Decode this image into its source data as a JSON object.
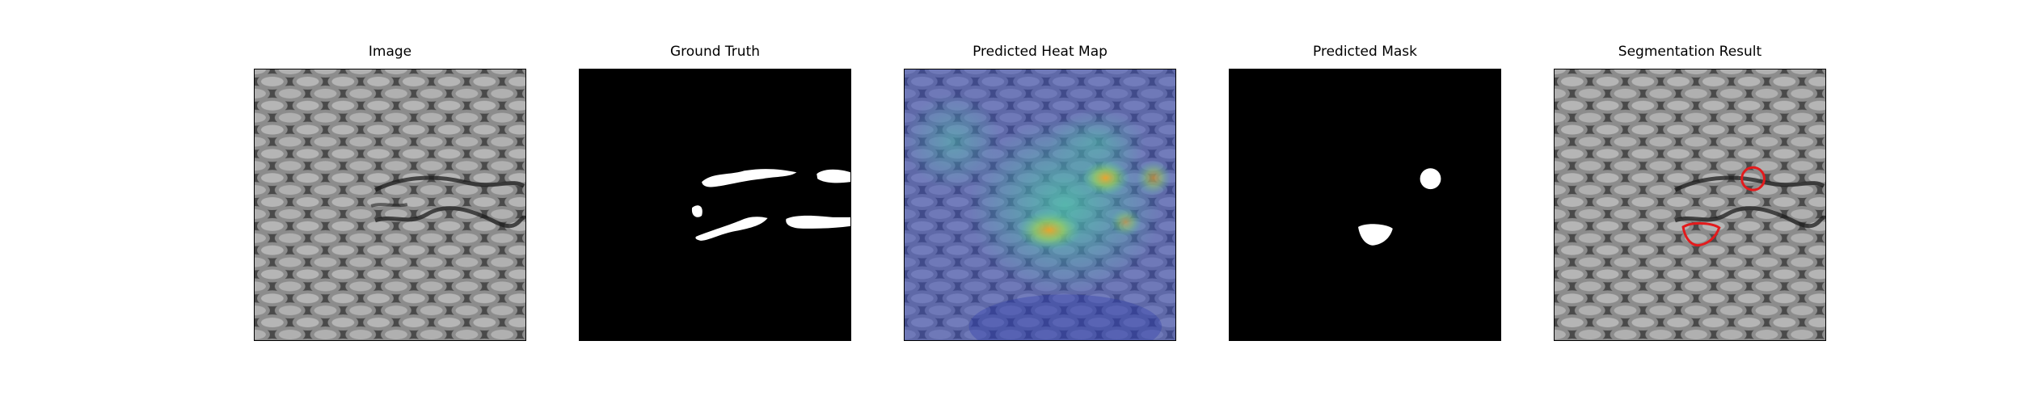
{
  "figure": {
    "panels": [
      {
        "title": "Image",
        "kind": "texture"
      },
      {
        "title": "Ground Truth",
        "kind": "ground-truth-mask"
      },
      {
        "title": "Predicted Heat Map",
        "kind": "heat-map-overlay"
      },
      {
        "title": "Predicted Mask",
        "kind": "predicted-mask"
      },
      {
        "title": "Segmentation Result",
        "kind": "contour-overlay"
      }
    ],
    "colors": {
      "background": "#ffffff",
      "mask_foreground": "#ffffff",
      "mask_background": "#000000",
      "contour": "#e31a1c",
      "heat_low": "#3b4cc0",
      "heat_mid": "#4ec9a8",
      "heat_high": "#f5a623"
    }
  }
}
